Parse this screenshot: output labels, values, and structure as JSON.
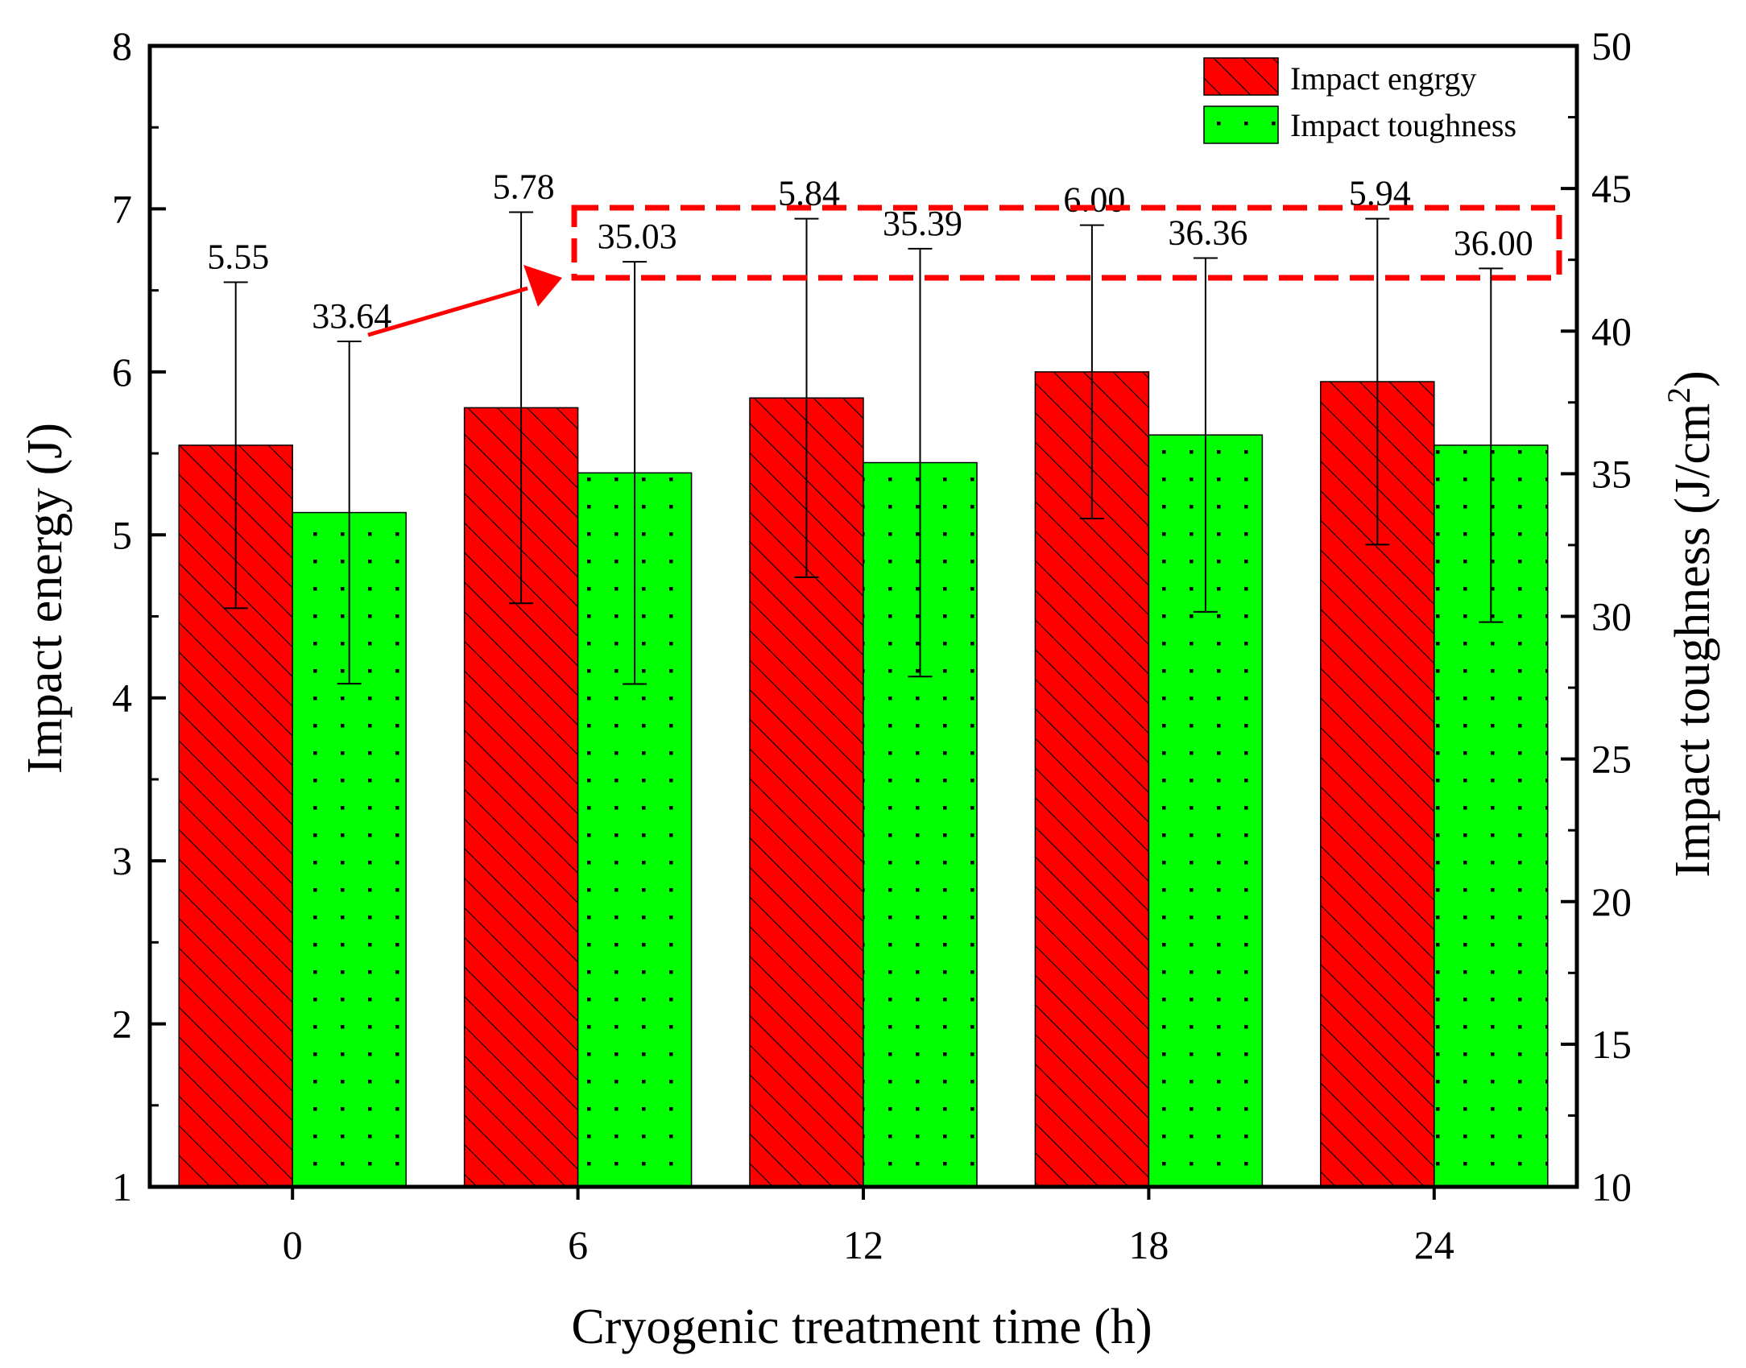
{
  "chart_data": {
    "type": "bar",
    "xlabel": "Cryogenic treatment time (h)",
    "ylabel_left": "Impact energy (J)",
    "ylabel_right": "Impact toughness (J/cm",
    "ylabel_right_superscript": "2",
    "ylabel_right_suffix": ")",
    "categories": [
      "0",
      "6",
      "12",
      "18",
      "24"
    ],
    "ylim_left": [
      1,
      8
    ],
    "ylim_right": [
      10,
      50
    ],
    "left_ticks": [
      1,
      2,
      3,
      4,
      5,
      6,
      7,
      8
    ],
    "right_ticks": [
      10,
      15,
      20,
      25,
      30,
      35,
      40,
      45,
      50
    ],
    "series": [
      {
        "name": "Impact engrgy",
        "axis": "left",
        "color": "#ff0000",
        "pattern": "diagonal-hatch",
        "values": [
          5.55,
          5.78,
          5.84,
          6.0,
          5.94
        ],
        "value_labels": [
          "5.55",
          "5.78",
          "5.84",
          "6.00",
          "5.94"
        ],
        "error": [
          1.0,
          1.2,
          1.1,
          0.9,
          1.0
        ]
      },
      {
        "name": "Impact toughness",
        "axis": "right",
        "color": "#00ff00",
        "pattern": "dots",
        "values": [
          33.64,
          35.03,
          35.39,
          36.36,
          36.0
        ],
        "value_labels": [
          "33.64",
          "35.03",
          "35.39",
          "36.36",
          "36.00"
        ],
        "error": [
          6.0,
          7.4,
          7.5,
          6.2,
          6.2
        ]
      }
    ],
    "legend_position": "top-right",
    "annotation": "red dashed box highlighting impact toughness values of 6-24 h, with red arrow from 0 h value"
  }
}
